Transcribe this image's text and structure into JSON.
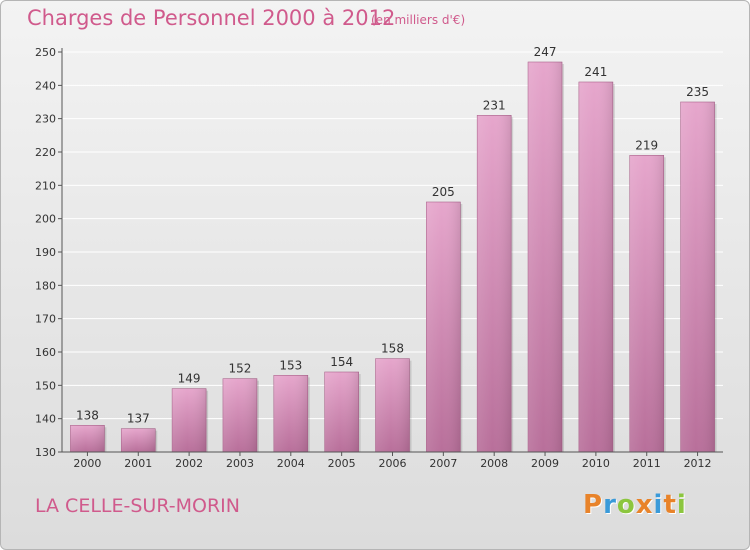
{
  "header": {
    "title": "Charges de Personnel 2000 à 2012",
    "subtitle": "(en milliers d'€)"
  },
  "footer": {
    "town": "LA CELLE-SUR-MORIN",
    "logo_letters": [
      "P",
      "r",
      "o",
      "x",
      "i",
      "t",
      "i"
    ],
    "logo_colors": [
      "#e8832a",
      "#3a9ad9",
      "#8cc63f",
      "#e8832a",
      "#3a9ad9",
      "#e8832a",
      "#8cc63f"
    ]
  },
  "colors": {
    "bar_top": "#e6a6cc",
    "bar_bottom": "#b86f9a",
    "axis": "#555555",
    "grid": "#ffffff",
    "text": "#333333",
    "accent": "#d05a8c"
  },
  "chart_data": {
    "type": "bar",
    "title": "Charges de Personnel 2000 à 2012",
    "subtitle": "(en milliers d'€)",
    "categories": [
      "2000",
      "2001",
      "2002",
      "2003",
      "2004",
      "2005",
      "2006",
      "2007",
      "2008",
      "2009",
      "2010",
      "2011",
      "2012"
    ],
    "values": [
      138,
      137,
      149,
      152,
      153,
      154,
      158,
      205,
      231,
      247,
      241,
      219,
      235
    ],
    "ylim": [
      130,
      250
    ],
    "yticks": [
      130,
      140,
      150,
      160,
      170,
      180,
      190,
      200,
      210,
      220,
      230,
      240,
      250
    ],
    "grid": true
  }
}
